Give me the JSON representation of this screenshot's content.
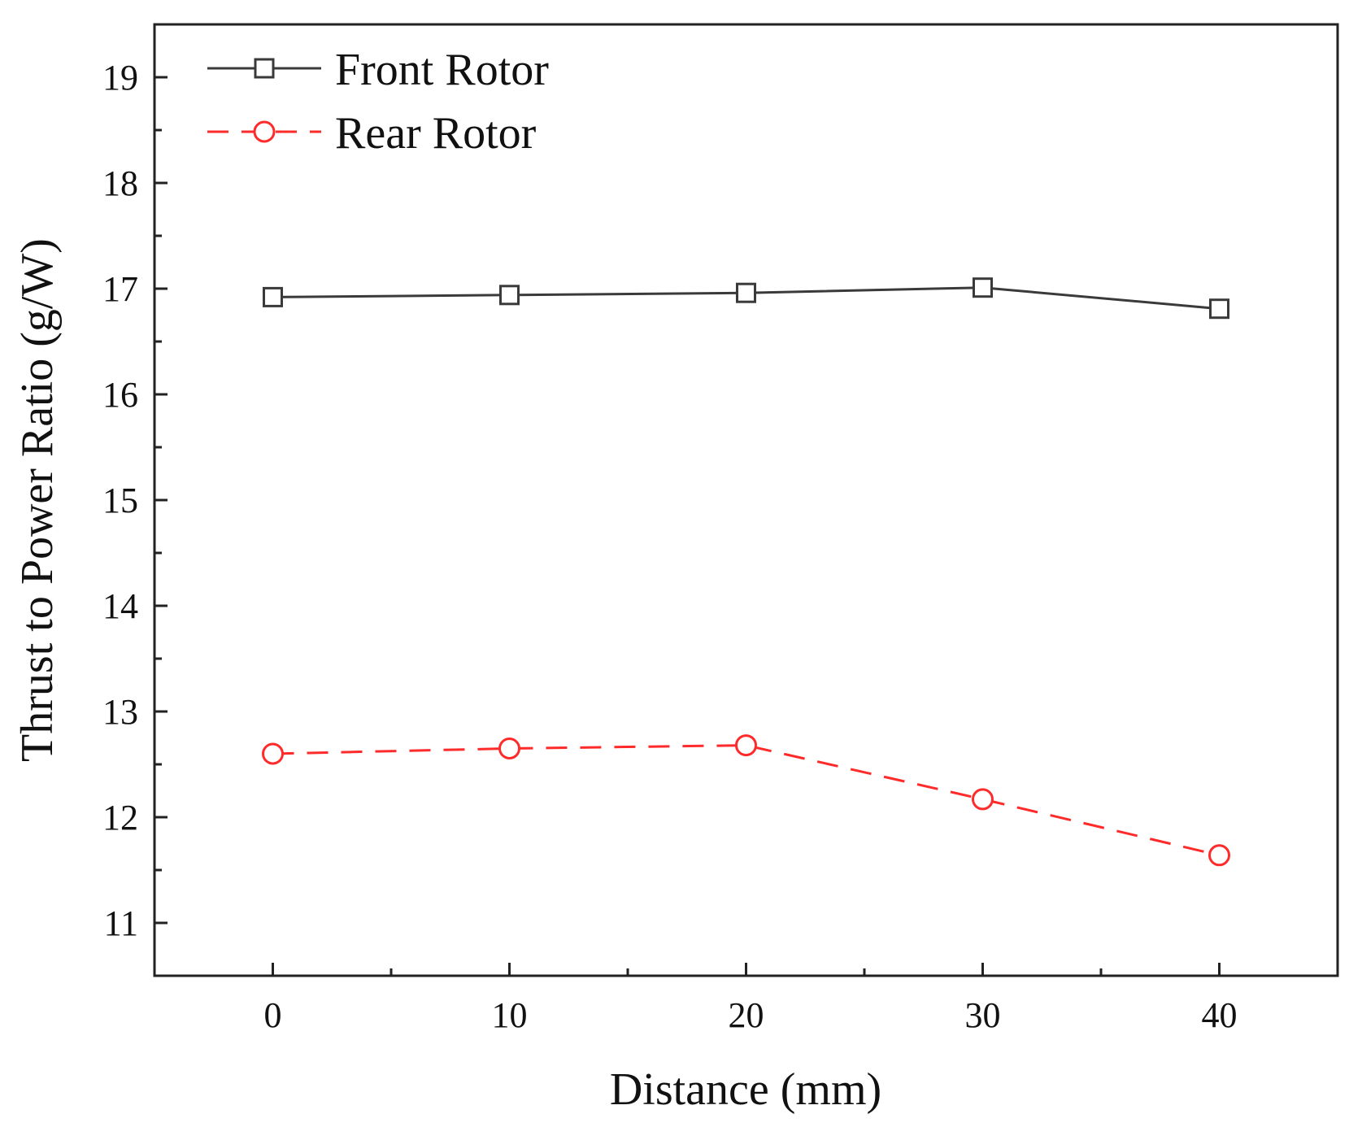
{
  "chart_data": {
    "type": "line",
    "title": "",
    "xlabel": "Distance (mm)",
    "ylabel": "Thrust to Power Ratio (g/W)",
    "xlim": [
      -5,
      45
    ],
    "ylim": [
      10.5,
      19.5
    ],
    "xticks": [
      0,
      10,
      20,
      30,
      40
    ],
    "yticks": [
      11,
      12,
      13,
      14,
      15,
      16,
      17,
      18,
      19
    ],
    "x_minor_step": 5,
    "y_minor_step": 0.5,
    "grid": false,
    "legend_position": "top-left",
    "x": [
      0,
      10,
      20,
      30,
      40
    ],
    "series": [
      {
        "name": "Front Rotor",
        "values": [
          16.92,
          16.94,
          16.96,
          17.01,
          16.81
        ],
        "color": "#3a3a3a",
        "line_style": "solid",
        "marker": "square"
      },
      {
        "name": "Rear Rotor",
        "values": [
          12.6,
          12.65,
          12.68,
          12.17,
          11.64
        ],
        "color": "#ff2a2a",
        "line_style": "dashed",
        "marker": "circle"
      }
    ]
  }
}
